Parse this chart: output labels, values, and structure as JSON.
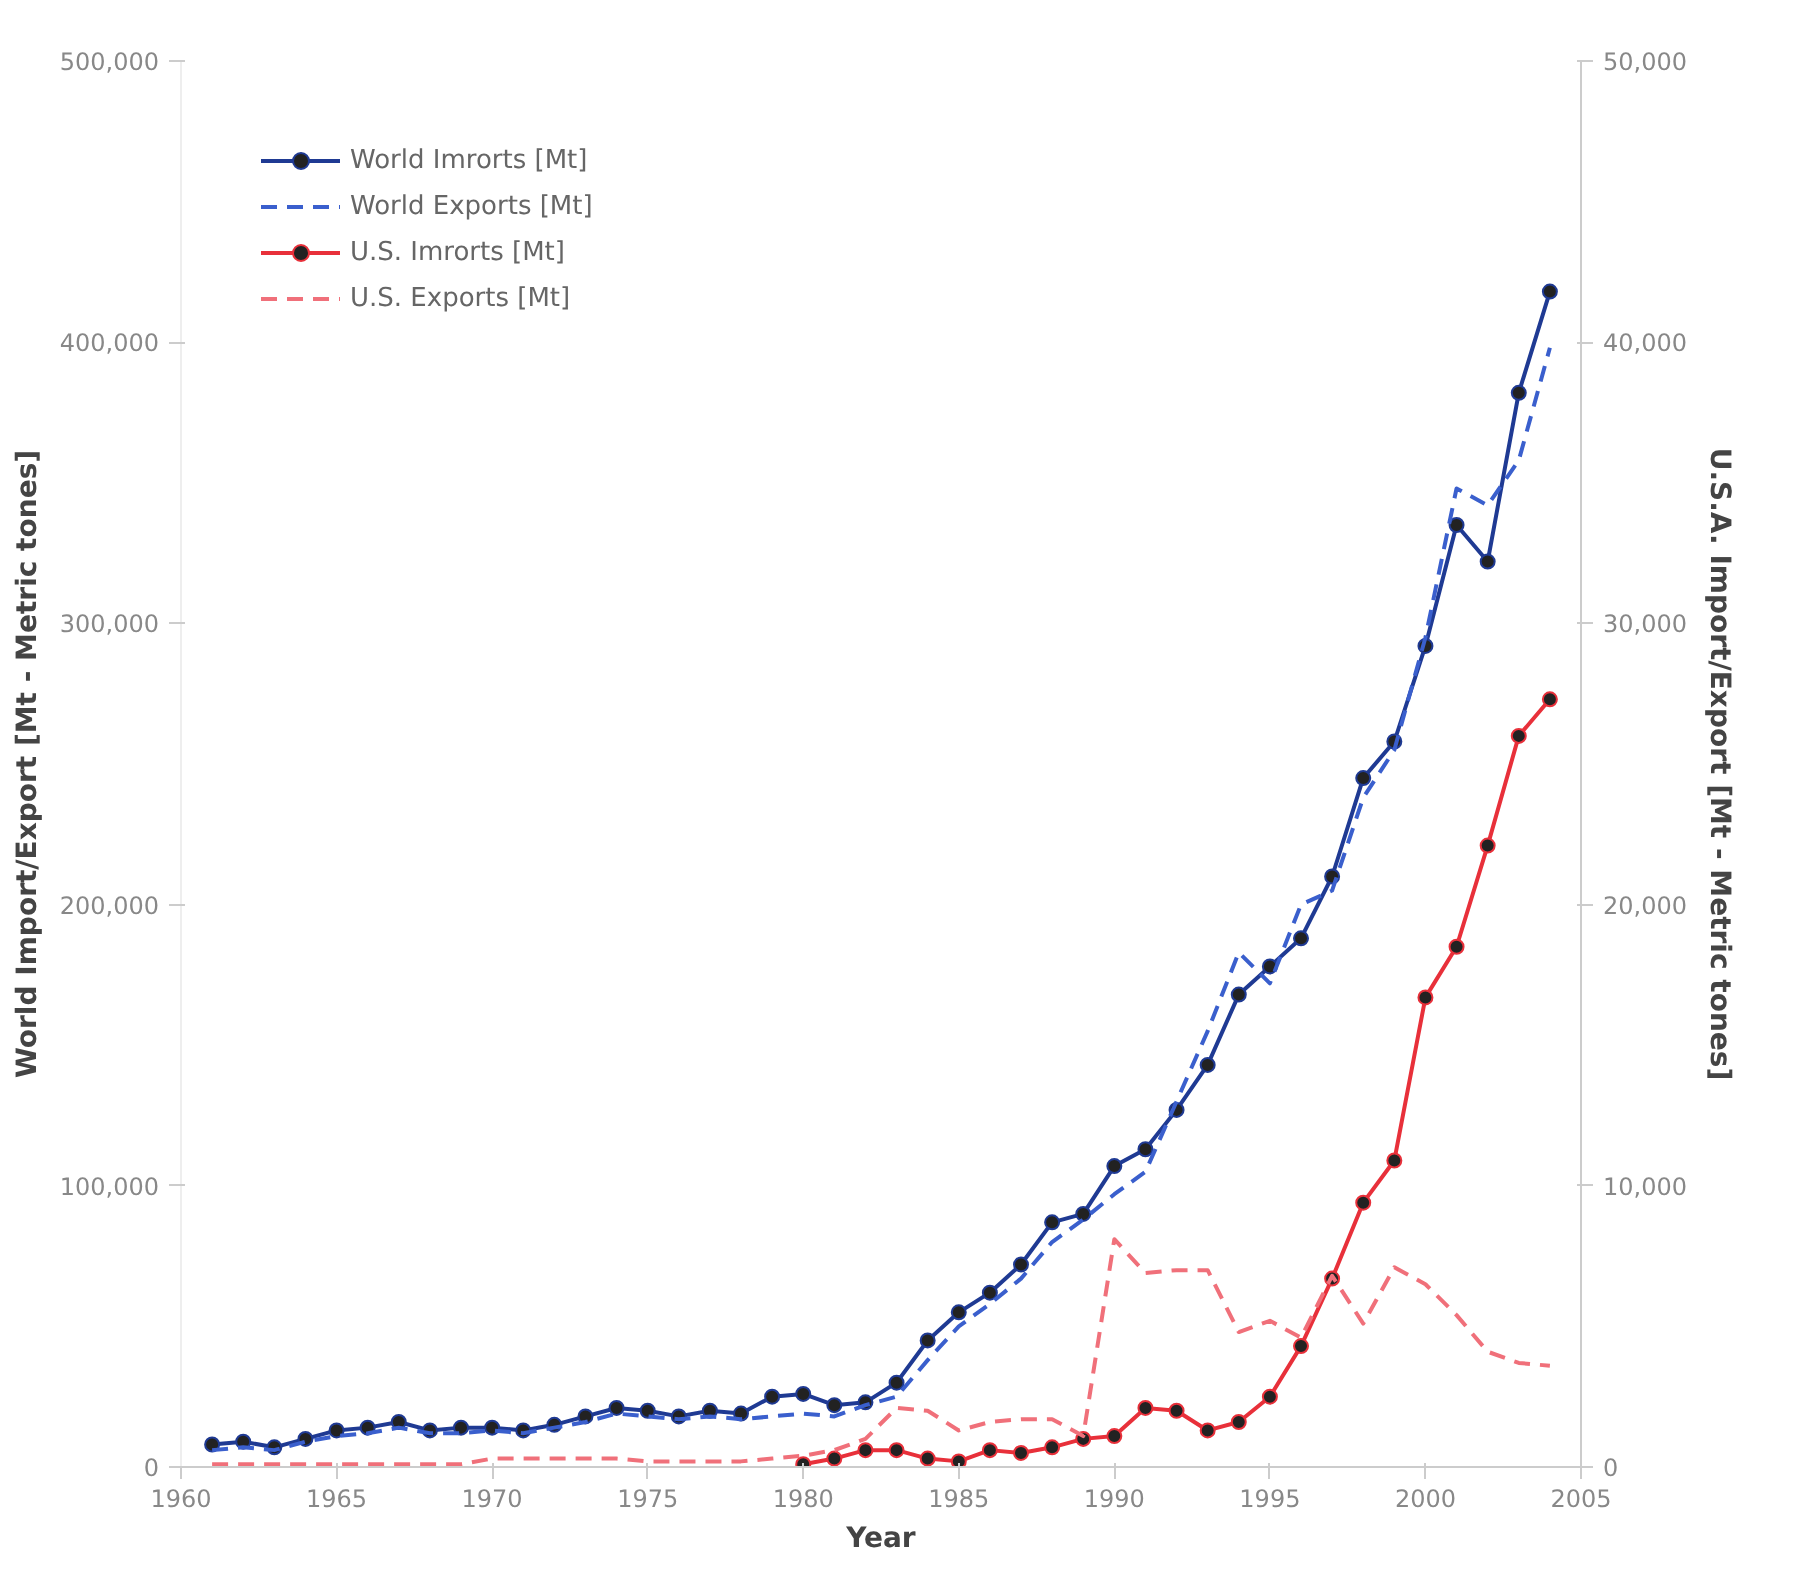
{
  "chart_data": {
    "type": "line",
    "xlabel": "Year",
    "ylabel": "World Import/Export [Mt - Metric tones]",
    "y2label": "U.S.A. Import/Export [Mt - Metric tones]",
    "xlim": [
      1960,
      2005
    ],
    "xticks": [
      1960,
      1965,
      1970,
      1975,
      1980,
      1985,
      1990,
      1995,
      2000,
      2005
    ],
    "ylim": [
      0,
      500000
    ],
    "yticks": [
      {
        "value": 0,
        "label": "0"
      },
      {
        "value": 100000,
        "label": "100,000"
      },
      {
        "value": 200000,
        "label": "200,000"
      },
      {
        "value": 300000,
        "label": "300,000"
      },
      {
        "value": 400000,
        "label": "400,000"
      },
      {
        "value": 500000,
        "label": "500,000"
      }
    ],
    "y2lim": [
      0,
      50000
    ],
    "y2ticks": [
      {
        "value": 0,
        "label": "0"
      },
      {
        "value": 10000,
        "label": "10,000"
      },
      {
        "value": 20000,
        "label": "20,000"
      },
      {
        "value": 30000,
        "label": "30,000"
      },
      {
        "value": 40000,
        "label": "40,000"
      },
      {
        "value": 50000,
        "label": "50,000"
      }
    ],
    "grid": false,
    "legend": "top left",
    "x": [
      1961,
      1962,
      1963,
      1964,
      1965,
      1966,
      1967,
      1968,
      1969,
      1970,
      1971,
      1972,
      1973,
      1974,
      1975,
      1976,
      1977,
      1978,
      1979,
      1980,
      1981,
      1982,
      1983,
      1984,
      1985,
      1986,
      1987,
      1988,
      1989,
      1990,
      1991,
      1992,
      1993,
      1994,
      1995,
      1996,
      1997,
      1998,
      1999,
      2000,
      2001,
      2002,
      2003,
      2004
    ],
    "series": [
      {
        "name": "World Imrorts [Mt]",
        "color": "#1f3a93",
        "marker": "circle",
        "line_style": "solid",
        "values": [
          8000,
          9000,
          7000,
          10000,
          13000,
          14000,
          16000,
          13000,
          14000,
          14000,
          13000,
          15000,
          18000,
          21000,
          20000,
          18000,
          20000,
          19000,
          25000,
          26000,
          22000,
          23000,
          30000,
          45000,
          55000,
          62000,
          72000,
          87000,
          90000,
          107000,
          113000,
          127000,
          143000,
          168000,
          178000,
          188000,
          210000,
          245000,
          258000,
          292000,
          335000,
          322000,
          382000,
          418000
        ]
      },
      {
        "name": "World Exports [Mt]",
        "color": "#3a5fcd",
        "marker": "none",
        "line_style": "dashed",
        "values": [
          6000,
          7000,
          6000,
          9000,
          11000,
          12000,
          14000,
          12000,
          12000,
          13000,
          12000,
          14000,
          16000,
          19000,
          18000,
          17000,
          18000,
          17000,
          18000,
          19000,
          18000,
          22000,
          25000,
          38000,
          50000,
          58000,
          67000,
          80000,
          88000,
          97000,
          105000,
          130000,
          155000,
          183000,
          172000,
          200000,
          205000,
          238000,
          255000,
          295000,
          348000,
          342000,
          358000,
          398000
        ]
      },
      {
        "name": "U.S. Imrorts [Mt]",
        "color": "#e8303a",
        "marker": "circle",
        "line_style": "solid",
        "axis": "y2",
        "values": [
          null,
          null,
          null,
          null,
          null,
          null,
          null,
          null,
          null,
          null,
          null,
          null,
          null,
          null,
          null,
          null,
          null,
          null,
          null,
          100,
          300,
          600,
          600,
          300,
          200,
          600,
          500,
          700,
          1000,
          1100,
          2100,
          2000,
          1300,
          1600,
          2500,
          4300,
          6700,
          9400,
          10900,
          16700,
          18500,
          22100,
          26000,
          27300
        ]
      },
      {
        "name": "U.S. Exports [Mt]",
        "color": "#f0707a",
        "marker": "none",
        "line_style": "dashed",
        "axis": "y2",
        "values": [
          100,
          100,
          100,
          100,
          100,
          100,
          100,
          100,
          100,
          300,
          300,
          300,
          300,
          300,
          200,
          200,
          200,
          200,
          300,
          400,
          600,
          1000,
          2100,
          2000,
          1300,
          1600,
          1700,
          1700,
          1100,
          8100,
          6900,
          7000,
          7000,
          4800,
          5200,
          4600,
          6800,
          5100,
          7100,
          6500,
          5400,
          4100,
          3700,
          3600
        ]
      }
    ]
  }
}
